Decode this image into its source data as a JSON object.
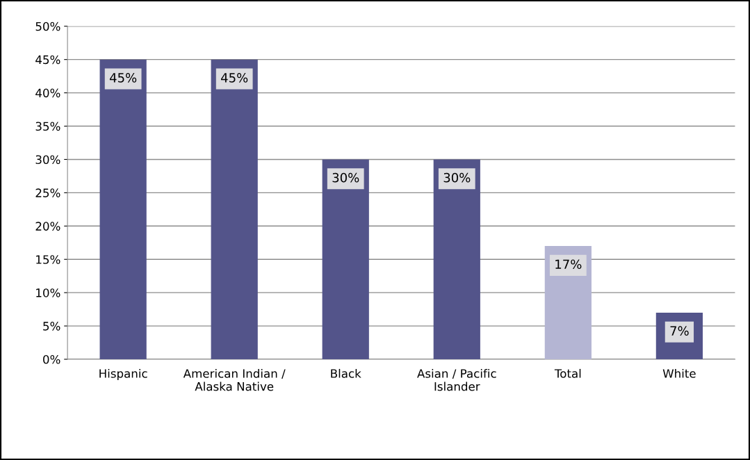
{
  "chart_data": {
    "type": "bar",
    "categories": [
      "Hispanic",
      "American Indian / Alaska Native",
      "Black",
      "Asian / Pacific Islander",
      "Total",
      "White"
    ],
    "values": [
      45,
      45,
      30,
      30,
      17,
      7
    ],
    "colors": [
      "#53548a",
      "#53548a",
      "#53548a",
      "#53548a",
      "#b4b5d3",
      "#53548a"
    ],
    "value_labels": [
      "45%",
      "45%",
      "30%",
      "30%",
      "17%",
      "7%"
    ],
    "ylim": [
      0,
      50
    ],
    "yticks": [
      {
        "value": 0,
        "label": "0%"
      },
      {
        "value": 5,
        "label": "5%"
      },
      {
        "value": 10,
        "label": "10%"
      },
      {
        "value": 15,
        "label": "15%"
      },
      {
        "value": 20,
        "label": "20%"
      },
      {
        "value": 25,
        "label": "25%"
      },
      {
        "value": 30,
        "label": "30%"
      },
      {
        "value": 35,
        "label": "35%"
      },
      {
        "value": 40,
        "label": "40%"
      },
      {
        "value": 45,
        "label": "45%"
      },
      {
        "value": 50,
        "label": "50%"
      }
    ],
    "grid": "y",
    "legend": false
  }
}
